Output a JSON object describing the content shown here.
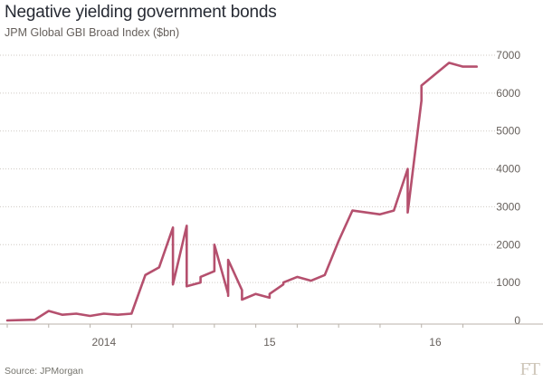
{
  "title": "Negative yielding government bonds",
  "subtitle": "JPM Global GBI Broad Index ($bn)",
  "source": "Source: JPMorgan",
  "logo": "FT",
  "colors": {
    "line": "#b5506e",
    "grid": "#cfcac3",
    "text": "#66605c",
    "logo": "#cec6b9"
  },
  "chart_data": {
    "type": "line",
    "title": "Negative yielding government bonds",
    "subtitle": "JPM Global GBI Broad Index ($bn)",
    "y_axis_side": "right",
    "ylim": [
      0,
      7000
    ],
    "yticks": [
      0,
      1000,
      2000,
      3000,
      4000,
      5000,
      6000,
      7000
    ],
    "ytick_labels": [
      "0",
      "1000",
      "2000",
      "3000",
      "4000",
      "5000",
      "6000",
      "7000"
    ],
    "xlim": [
      "2013-06",
      "2016-05"
    ],
    "xtick_labels": [
      {
        "label": "2014",
        "at": "2014-01"
      },
      {
        "label": "15",
        "at": "2015-01"
      },
      {
        "label": "16",
        "at": "2016-01"
      }
    ],
    "grid": "horizontal dotted",
    "series": [
      {
        "x": [
          "2013-06",
          "2013-07",
          "2013-08",
          "2013-09",
          "2013-10",
          "2013-11",
          "2013-12",
          "2014-01",
          "2014-02",
          "2014-03",
          "2014-04",
          "2014-05",
          "2014-06",
          "2014-06",
          "2014-07",
          "2014-07",
          "2014-08",
          "2014-08",
          "2014-09",
          "2014-09",
          "2014-10",
          "2014-10",
          "2014-10",
          "2014-11",
          "2014-11",
          "2014-12",
          "2015-01",
          "2015-01",
          "2015-02",
          "2015-02",
          "2015-03",
          "2015-04",
          "2015-05",
          "2015-06",
          "2015-07",
          "2015-08",
          "2015-09",
          "2015-10",
          "2015-11",
          "2015-11",
          "2015-12",
          "2015-12",
          "2016-01",
          "2016-02",
          "2016-03",
          "2016-04"
        ],
        "y": [
          0,
          10,
          20,
          250,
          150,
          180,
          120,
          180,
          150,
          180,
          1200,
          1400,
          2450,
          950,
          2500,
          900,
          1000,
          1150,
          1300,
          2000,
          700,
          650,
          1600,
          800,
          550,
          700,
          600,
          700,
          950,
          1000,
          1150,
          1050,
          1200,
          2100,
          2900,
          2850,
          2800,
          2900,
          4000,
          2850,
          5800,
          6200,
          6500,
          6800,
          6700,
          6700
        ]
      }
    ]
  }
}
